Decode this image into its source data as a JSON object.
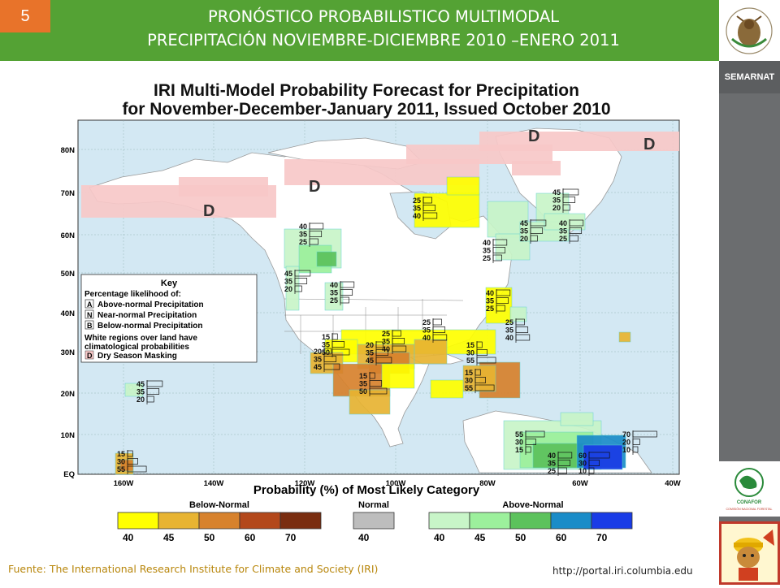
{
  "slide": {
    "number": "5",
    "title_line1": "PRONÓSTICO PROBABILISTICO MULTIMODAL",
    "title_line2": "PRECIPITACIÓN NOVIEMBRE-DICIEMBRE 2010 –ENERO 2011",
    "source": "Fuente: The International Research Institute for Climate and Society (IRI)",
    "url": "http://portal.iri.columbia.edu"
  },
  "sidebar": {
    "semarnat": "SEMARNAT",
    "conafor": "CONAFOR",
    "conafor_full": "COMISIÓN NACIONAL FORESTAL"
  },
  "map": {
    "title_line1": "IRI Multi-Model Probability Forecast for Precipitation",
    "title_line2": "for November-December-January 2011, Issued October 2010",
    "lat_labels": [
      "80N",
      "70N",
      "60N",
      "50N",
      "40N",
      "30N",
      "20N",
      "10N",
      "EQ"
    ],
    "lon_labels": [
      "160W",
      "140W",
      "120W",
      "100W",
      "80W",
      "60W",
      "40W"
    ],
    "dry_mask_label": "D",
    "key": {
      "title": "Key",
      "subtitle": "Percentage likelihood of:",
      "rows": [
        {
          "letter": "A",
          "text": "Above-normal Precipitation"
        },
        {
          "letter": "N",
          "text": "Near-normal Precipitation"
        },
        {
          "letter": "B",
          "text": "Below-normal Precipitation"
        }
      ],
      "note_line1": "White regions over land have",
      "note_line2": "climatological probabilities",
      "dry_text": "Dry Season Masking"
    },
    "annotations": [
      {
        "region": "sw-canada",
        "values": [
          "40",
          "35",
          "25"
        ]
      },
      {
        "region": "pacific-nw",
        "values": [
          "45",
          "35",
          "20"
        ]
      },
      {
        "region": "idaho",
        "values": [
          "40",
          "35",
          "25"
        ]
      },
      {
        "region": "hudson-bay",
        "values": [
          "25",
          "35",
          "40"
        ]
      },
      {
        "region": "labrador",
        "values": [
          "45",
          "35",
          "20"
        ]
      },
      {
        "region": "quebec-west",
        "values": [
          "45",
          "35",
          "20"
        ]
      },
      {
        "region": "quebec-east",
        "values": [
          "40",
          "35",
          "25"
        ]
      },
      {
        "region": "quebec-south",
        "values": [
          "40",
          "35",
          "25"
        ]
      },
      {
        "region": "great-lakes",
        "values": [
          "40",
          "35",
          "25"
        ]
      },
      {
        "region": "mid-atlantic",
        "values": [
          "25",
          "35",
          "40"
        ]
      },
      {
        "region": "ohio-valley",
        "values": [
          "25",
          "35",
          "40"
        ]
      },
      {
        "region": "texas",
        "values": [
          "25",
          "35",
          "40"
        ]
      },
      {
        "region": "southern-plains",
        "values": [
          "20",
          "35",
          "45"
        ]
      },
      {
        "region": "florida",
        "values": [
          "15",
          "30",
          "55"
        ]
      },
      {
        "region": "baja",
        "values": [
          "15",
          "35",
          "50"
        ]
      },
      {
        "region": "baja-south",
        "values": [
          "20",
          "35",
          "45"
        ]
      },
      {
        "region": "central-mexico",
        "values": [
          "15",
          "35",
          "50"
        ]
      },
      {
        "region": "caribbean",
        "values": [
          "15",
          "30",
          "55"
        ]
      },
      {
        "region": "hawaii",
        "values": [
          "45",
          "35",
          "20"
        ]
      },
      {
        "region": "venezuela",
        "values": [
          "55",
          "30",
          "15"
        ]
      },
      {
        "region": "amazon-west",
        "values": [
          "40",
          "35",
          "25"
        ]
      },
      {
        "region": "amazon-center",
        "values": [
          "60",
          "30",
          "10"
        ]
      },
      {
        "region": "amazon-east",
        "values": [
          "70",
          "20",
          "10"
        ]
      },
      {
        "region": "central-pacific",
        "values": [
          "15",
          "30",
          "55"
        ]
      }
    ],
    "legend": {
      "title": "Probability (%) of Most Likely Category",
      "below_label": "Below-Normal",
      "normal_label": "Normal",
      "above_label": "Above-Normal",
      "below_values": [
        "40",
        "45",
        "50",
        "60",
        "70"
      ],
      "normal_values": [
        "40"
      ],
      "above_values": [
        "40",
        "45",
        "50",
        "60",
        "70"
      ],
      "below_colors": [
        "#ffff00",
        "#e8b432",
        "#d7822d",
        "#b3481b",
        "#7a2d10"
      ],
      "normal_color": "#bdbdbd",
      "above_colors": [
        "#c8f5c8",
        "#9cf09c",
        "#5cc25c",
        "#1a8cc8",
        "#1a3ce6"
      ]
    }
  },
  "colors": {
    "header_green": "#54a234",
    "slide_number_orange": "#e8732a",
    "dry_mask_pink": "#f7c8c8",
    "ocean": "#cfe6f2"
  }
}
